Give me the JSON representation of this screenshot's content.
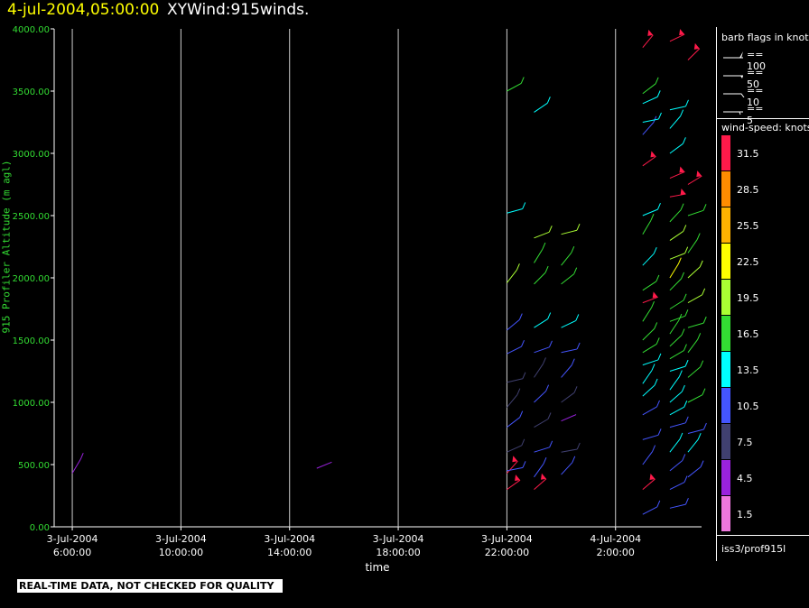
{
  "header": {
    "time": "4-jul-2004,05:00:00",
    "title": "XYWind:915winds."
  },
  "warning": "REAL-TIME DATA, NOT CHECKED FOR QUALITY",
  "legend": {
    "barb_title": "barb flags in knots",
    "barbs": [
      {
        "label": "== 100",
        "kind": "triangle"
      },
      {
        "label": "== 50",
        "kind": "solid"
      },
      {
        "label": "== 10",
        "kind": "full"
      },
      {
        "label": "== 5",
        "kind": "half"
      }
    ],
    "speed_title": "wind-speed: knots",
    "colorbar": [
      {
        "label": "31.5",
        "color": "#ff1a4a"
      },
      {
        "label": "28.5",
        "color": "#ff8c00"
      },
      {
        "label": "25.5",
        "color": "#ffb300"
      },
      {
        "label": "22.5",
        "color": "#ffff00"
      },
      {
        "label": "19.5",
        "color": "#aaff33"
      },
      {
        "label": "16.5",
        "color": "#33dd33"
      },
      {
        "label": "13.5",
        "color": "#00ffff"
      },
      {
        "label": "10.5",
        "color": "#4455ff"
      },
      {
        "label": "7.5",
        "color": "#404070"
      },
      {
        "label": "4.5",
        "color": "#9922dd"
      },
      {
        "label": "1.5",
        "color": "#ee77dd"
      }
    ],
    "footer": "iss3/prof915l"
  },
  "chart_data": {
    "type": "scatter",
    "title": "XYWind:915winds.",
    "xlabel": "time",
    "ylabel": "915 Profiler Altitude (m agl)",
    "ylim": [
      0,
      4000
    ],
    "yticks": [
      "0.00",
      "500.00",
      "1000.00",
      "1500.00",
      "2000.00",
      "2500.00",
      "3000.00",
      "3500.00",
      "4000.00"
    ],
    "xlim": [
      "2004-07-03 05:20",
      "2004-07-04 05:10"
    ],
    "xticks": [
      {
        "date": "3-Jul-2004",
        "time": "6:00:00"
      },
      {
        "date": "3-Jul-2004",
        "time": "10:00:00"
      },
      {
        "date": "3-Jul-2004",
        "time": "14:00:00"
      },
      {
        "date": "3-Jul-2004",
        "time": "18:00:00"
      },
      {
        "date": "3-Jul-2004",
        "time": "22:00:00"
      },
      {
        "date": "4-Jul-2004",
        "time": "2:00:00"
      }
    ],
    "grid": "vertical",
    "series": [
      {
        "time": "2004-07-03 06:00",
        "barbs": [
          [
            430,
            5.5
          ]
        ]
      },
      {
        "time": "2004-07-03 15:00",
        "barbs": [
          [
            470,
            3.0
          ]
        ]
      },
      {
        "time": "2004-07-03 22:00",
        "barbs": [
          [
            300,
            31.5
          ],
          [
            430,
            31.5
          ],
          [
            450,
            9
          ],
          [
            600,
            6
          ],
          [
            800,
            9
          ],
          [
            960,
            7
          ],
          [
            1160,
            7
          ],
          [
            1390,
            9
          ],
          [
            1580,
            11
          ],
          [
            1960,
            19
          ],
          [
            2520,
            14
          ],
          [
            3500,
            17
          ]
        ]
      },
      {
        "time": "2004-07-03 23:00",
        "barbs": [
          [
            300,
            31.5
          ],
          [
            400,
            10
          ],
          [
            600,
            11
          ],
          [
            800,
            6
          ],
          [
            1000,
            9
          ],
          [
            1200,
            8
          ],
          [
            1400,
            9
          ],
          [
            1600,
            12
          ],
          [
            1950,
            17
          ],
          [
            2120,
            15
          ],
          [
            2320,
            18
          ],
          [
            3330,
            13
          ]
        ]
      },
      {
        "time": "2004-07-04 00:00",
        "barbs": [
          [
            420,
            11
          ],
          [
            600,
            6
          ],
          [
            850,
            4.5
          ],
          [
            1000,
            8
          ],
          [
            1200,
            10
          ],
          [
            1400,
            9
          ],
          [
            1600,
            12
          ],
          [
            1950,
            17
          ],
          [
            2100,
            16
          ],
          [
            2350,
            18
          ]
        ]
      },
      {
        "time": "2004-07-04 03:00",
        "barbs": [
          [
            100,
            10
          ],
          [
            300,
            31.5
          ],
          [
            500,
            10
          ],
          [
            700,
            9
          ],
          [
            900,
            11
          ],
          [
            1050,
            13
          ],
          [
            1150,
            12
          ],
          [
            1300,
            13
          ],
          [
            1400,
            15
          ],
          [
            1500,
            16
          ],
          [
            1650,
            17
          ],
          [
            1800,
            31.5
          ],
          [
            1900,
            16
          ],
          [
            2100,
            14
          ],
          [
            2350,
            16
          ],
          [
            2500,
            14
          ],
          [
            2900,
            31.5
          ],
          [
            3150,
            10
          ],
          [
            3250,
            13
          ],
          [
            3400,
            13
          ],
          [
            3480,
            17
          ],
          [
            3850,
            31.5
          ]
        ]
      },
      {
        "time": "2004-07-04 04:00",
        "barbs": [
          [
            150,
            9
          ],
          [
            300,
            11
          ],
          [
            450,
            10
          ],
          [
            600,
            12
          ],
          [
            800,
            11
          ],
          [
            900,
            14
          ],
          [
            1000,
            13
          ],
          [
            1100,
            14
          ],
          [
            1250,
            13
          ],
          [
            1350,
            15
          ],
          [
            1450,
            16
          ],
          [
            1550,
            17
          ],
          [
            1650,
            16
          ],
          [
            1750,
            17
          ],
          [
            1900,
            17
          ],
          [
            2000,
            22.5
          ],
          [
            2150,
            19
          ],
          [
            2300,
            18
          ],
          [
            2450,
            15
          ],
          [
            2650,
            31.5
          ],
          [
            2800,
            31.5
          ],
          [
            3000,
            13
          ],
          [
            3200,
            14
          ],
          [
            3350,
            13
          ],
          [
            3900,
            31.5
          ]
        ]
      },
      {
        "time": "2004-07-04 04:40",
        "barbs": [
          [
            400,
            10
          ],
          [
            600,
            12
          ],
          [
            750,
            11
          ],
          [
            1000,
            15
          ],
          [
            1200,
            16
          ],
          [
            1400,
            16
          ],
          [
            1600,
            17
          ],
          [
            1800,
            18
          ],
          [
            2000,
            19
          ],
          [
            2200,
            17
          ],
          [
            2500,
            16
          ],
          [
            2750,
            31.5
          ],
          [
            3750,
            31.5
          ]
        ]
      }
    ]
  }
}
